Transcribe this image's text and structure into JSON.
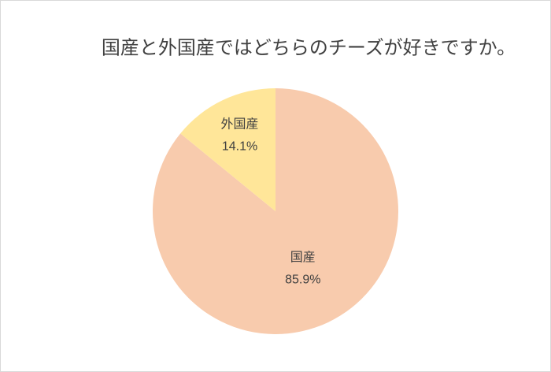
{
  "chart_data": {
    "type": "pie",
    "title": "国産と外国産ではどちらのチーズが好きですか。",
    "categories": [
      "国産",
      "外国産"
    ],
    "values": [
      85.9,
      14.1
    ],
    "value_labels": [
      "85.9%",
      "14.1%"
    ],
    "colors": [
      "#f8cbad",
      "#ffe699"
    ]
  }
}
